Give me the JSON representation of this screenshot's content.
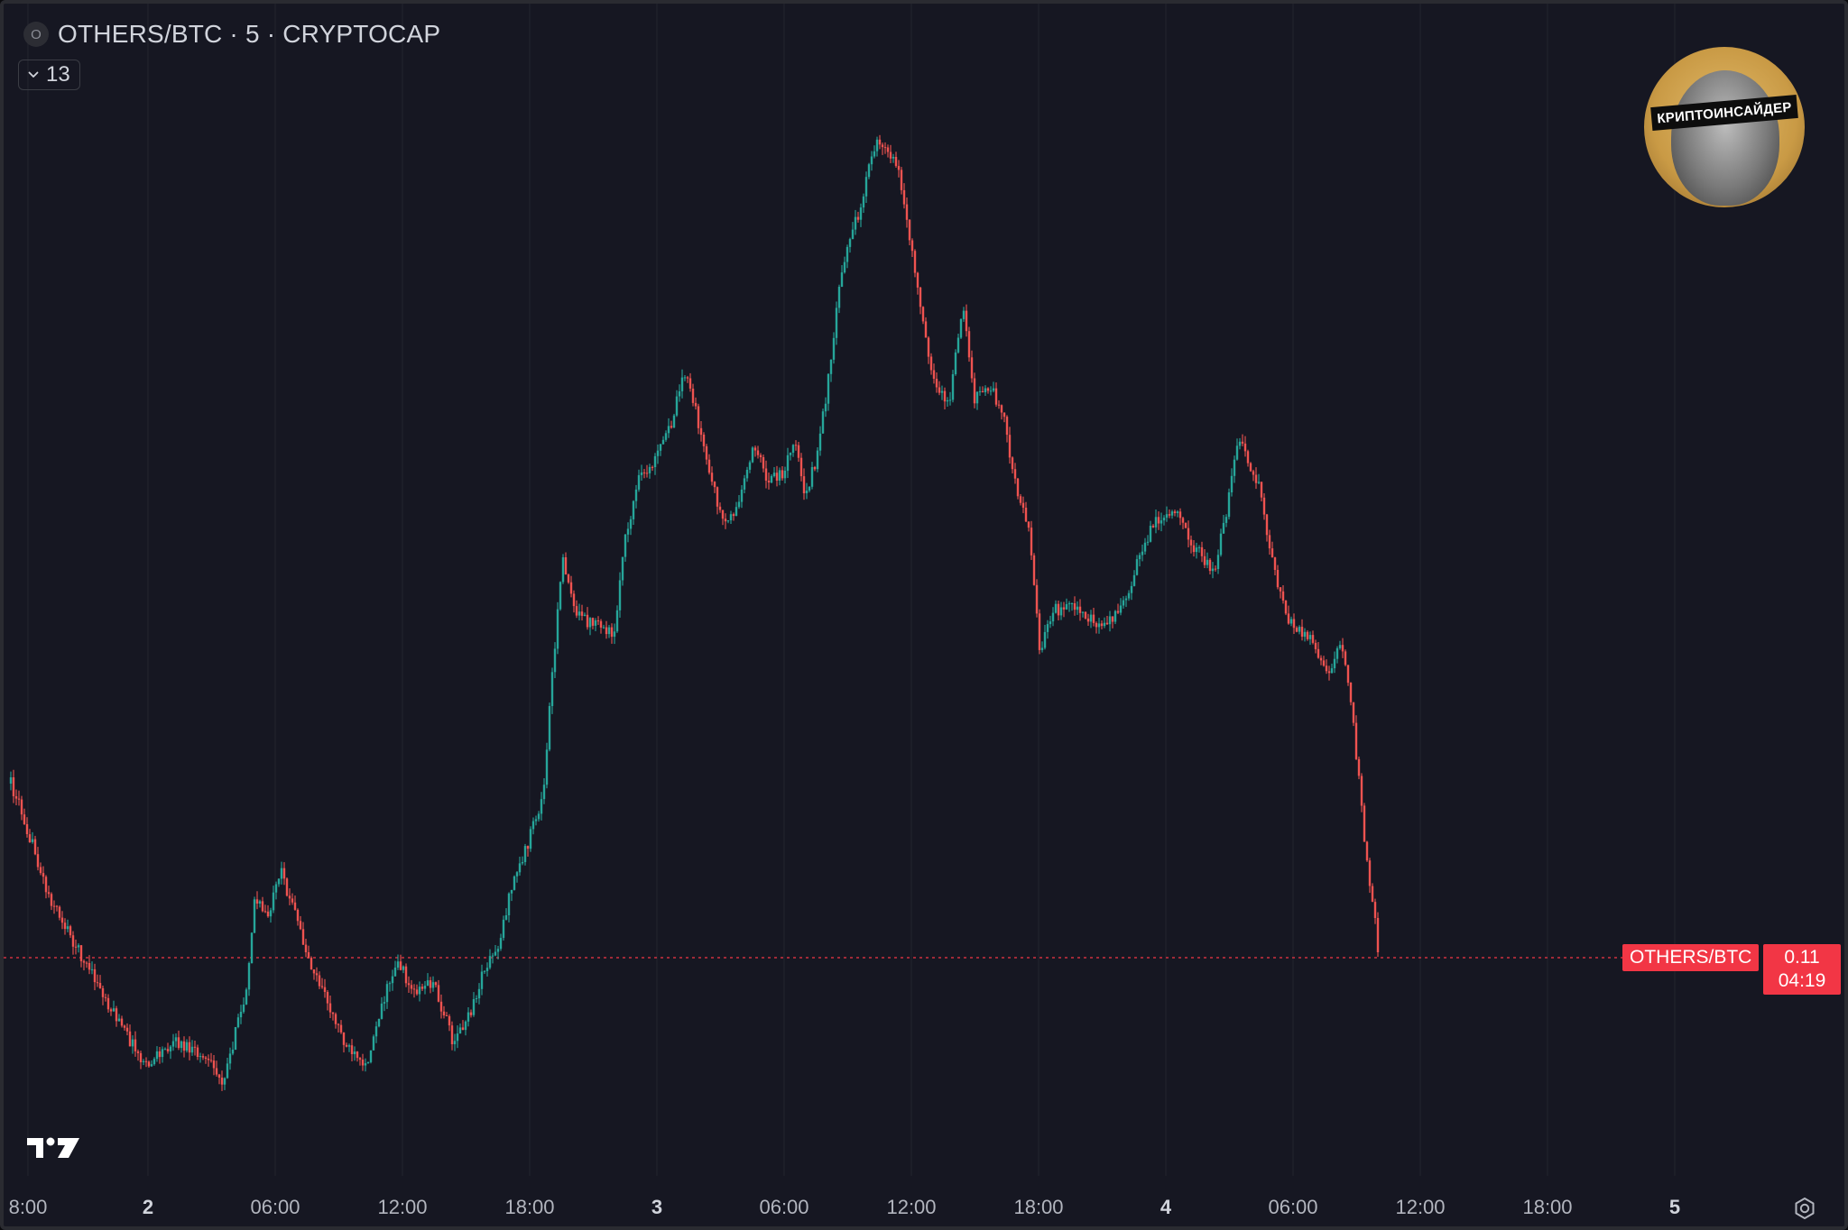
{
  "header": {
    "symbol_logo": "O",
    "title": "OTHERS/BTC · 5 · CRYPTOCAP",
    "indicators_count": "13",
    "indicators_icon": "chevron-down-icon"
  },
  "watermark": {
    "badge_text": "КРИПТОИНСАЙДЕР",
    "tv_logo": "tradingview-logo"
  },
  "price_label": {
    "symbol": "OTHERS/BTC",
    "price": "0.11",
    "countdown": "04:19"
  },
  "bottom_bar": {
    "settings_icon": "gear-icon"
  },
  "colors": {
    "background": "#161722",
    "up": "#26a69a",
    "down": "#ef5350",
    "price_line": "#f23645",
    "grid": "#22232d"
  },
  "chart_data": {
    "type": "candlestick",
    "symbol": "OTHERS/BTC",
    "interval": "5",
    "exchange": "CRYPTOCAP",
    "last_price": 0.11,
    "x_tick_labels": [
      "8:00",
      "2",
      "06:00",
      "12:00",
      "18:00",
      "3",
      "06:00",
      "12:00",
      "18:00",
      "4",
      "06:00",
      "12:00",
      "18:00",
      "5"
    ],
    "x_tick_bold": [
      false,
      true,
      false,
      false,
      false,
      true,
      false,
      false,
      false,
      true,
      false,
      false,
      false,
      true
    ],
    "price_path": [
      [
        0,
        865
      ],
      [
        12,
        895
      ],
      [
        40,
        985
      ],
      [
        80,
        1060
      ],
      [
        120,
        1130
      ],
      [
        150,
        1180
      ],
      [
        180,
        1150
      ],
      [
        215,
        1170
      ],
      [
        235,
        1195
      ],
      [
        260,
        1100
      ],
      [
        270,
        995
      ],
      [
        285,
        1010
      ],
      [
        300,
        965
      ],
      [
        315,
        1010
      ],
      [
        330,
        1060
      ],
      [
        350,
        1105
      ],
      [
        372,
        1155
      ],
      [
        392,
        1185
      ],
      [
        408,
        1120
      ],
      [
        428,
        1060
      ],
      [
        445,
        1095
      ],
      [
        468,
        1085
      ],
      [
        490,
        1150
      ],
      [
        510,
        1120
      ],
      [
        525,
        1070
      ],
      [
        540,
        1045
      ],
      [
        555,
        980
      ],
      [
        575,
        925
      ],
      [
        590,
        880
      ],
      [
        600,
        740
      ],
      [
        612,
        615
      ],
      [
        628,
        680
      ],
      [
        648,
        690
      ],
      [
        668,
        700
      ],
      [
        680,
        600
      ],
      [
        695,
        530
      ],
      [
        715,
        505
      ],
      [
        732,
        465
      ],
      [
        745,
        405
      ],
      [
        760,
        455
      ],
      [
        775,
        525
      ],
      [
        790,
        575
      ],
      [
        805,
        560
      ],
      [
        822,
        490
      ],
      [
        840,
        530
      ],
      [
        855,
        520
      ],
      [
        870,
        485
      ],
      [
        880,
        545
      ],
      [
        893,
        505
      ],
      [
        905,
        425
      ],
      [
        920,
        295
      ],
      [
        940,
        230
      ],
      [
        960,
        148
      ],
      [
        982,
        175
      ],
      [
        1000,
        285
      ],
      [
        1012,
        355
      ],
      [
        1022,
        420
      ],
      [
        1040,
        445
      ],
      [
        1055,
        330
      ],
      [
        1068,
        440
      ],
      [
        1085,
        425
      ],
      [
        1100,
        455
      ],
      [
        1115,
        545
      ],
      [
        1128,
        575
      ],
      [
        1140,
        715
      ],
      [
        1158,
        672
      ],
      [
        1182,
        670
      ],
      [
        1210,
        690
      ],
      [
        1235,
        665
      ],
      [
        1252,
        605
      ],
      [
        1272,
        570
      ],
      [
        1290,
        565
      ],
      [
        1310,
        600
      ],
      [
        1333,
        630
      ],
      [
        1350,
        548
      ],
      [
        1360,
        480
      ],
      [
        1372,
        508
      ],
      [
        1385,
        540
      ],
      [
        1398,
        620
      ],
      [
        1418,
        688
      ],
      [
        1440,
        705
      ],
      [
        1460,
        750
      ],
      [
        1472,
        700
      ],
      [
        1485,
        770
      ],
      [
        1500,
        925
      ],
      [
        1512,
        1020
      ],
      [
        1515,
        1055
      ]
    ],
    "price_line_y": 1058,
    "ylim": null
  }
}
